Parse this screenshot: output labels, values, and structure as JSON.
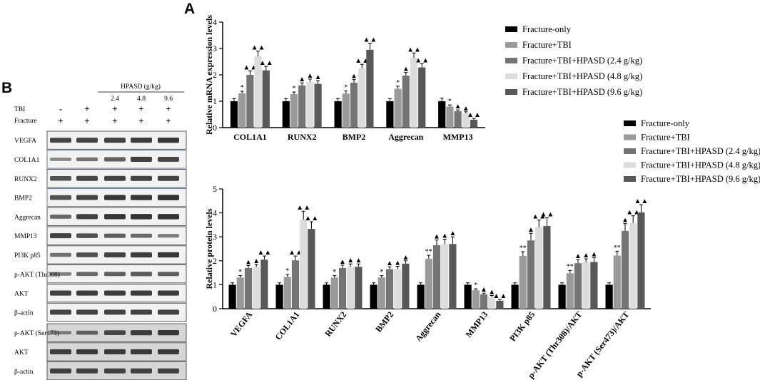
{
  "colors": {
    "series": [
      "#000000",
      "#9a9a9a",
      "#747474",
      "#dcdcdc",
      "#585858"
    ],
    "blot_band": "#1a1a1a"
  },
  "western_blot": {
    "panel_letter": "B",
    "header": "HPASD (g/kg)",
    "doses": [
      "2.4",
      "4.8",
      "9.6"
    ],
    "tbi_label": "TBI",
    "tbi_signs": [
      "-",
      "+",
      "+",
      "+",
      "+"
    ],
    "fracture_label": "Fracture",
    "fracture_signs": [
      "+",
      "+",
      "+",
      "+",
      "+"
    ],
    "rows": [
      "VEGFA",
      "COL1A1",
      "RUNX2",
      "BMP2",
      "Aggrecan",
      "MMP13",
      "PI3K p85",
      "p-AKT (Thr308)",
      "AKT",
      "β-actin",
      "p-AKT (Ser473)",
      "AKT",
      "β-actin"
    ],
    "band_intensity": [
      [
        0.78,
        0.8,
        0.82,
        0.85,
        0.88
      ],
      [
        0.35,
        0.48,
        0.62,
        0.82,
        0.78
      ],
      [
        0.72,
        0.78,
        0.8,
        0.8,
        0.8
      ],
      [
        0.72,
        0.8,
        0.88,
        0.88,
        0.92
      ],
      [
        0.55,
        0.82,
        0.88,
        0.9,
        0.9
      ],
      [
        0.8,
        0.7,
        0.62,
        0.55,
        0.42
      ],
      [
        0.5,
        0.72,
        0.8,
        0.85,
        0.88
      ],
      [
        0.4,
        0.55,
        0.62,
        0.65,
        0.62
      ],
      [
        0.82,
        0.84,
        0.84,
        0.84,
        0.84
      ],
      [
        0.8,
        0.8,
        0.8,
        0.8,
        0.8
      ],
      [
        0.35,
        0.55,
        0.75,
        0.82,
        0.85
      ],
      [
        0.82,
        0.84,
        0.84,
        0.84,
        0.84
      ],
      [
        0.78,
        0.78,
        0.78,
        0.78,
        0.78
      ]
    ]
  },
  "chart_data": [
    {
      "type": "bar",
      "panel_letter": "A",
      "title": "",
      "xlabel": "",
      "ylabel": "Relative mRNA expression levels",
      "ylim": [
        0,
        4
      ],
      "yticks": [
        "0",
        "1",
        "2",
        "3",
        "4"
      ],
      "categories": [
        "COL1A1",
        "RUNX2",
        "BMP2",
        "Aggrecan",
        "MMP13"
      ],
      "legend_position": "right",
      "series": [
        {
          "name": "Fracture-only",
          "values": [
            1.0,
            1.0,
            1.0,
            1.0,
            1.0
          ],
          "errors": [
            0.1,
            0.1,
            0.1,
            0.1,
            0.12
          ],
          "marks": [
            "",
            "",
            "",
            "",
            ""
          ]
        },
        {
          "name": "Fracture+TBI",
          "values": [
            1.3,
            1.27,
            1.29,
            1.47,
            0.8
          ],
          "errors": [
            0.08,
            0.08,
            0.1,
            0.1,
            0.06
          ],
          "marks": [
            "*",
            "*",
            "*",
            "*",
            "*"
          ]
        },
        {
          "name": "Fracture+TBI+HPASD (2.4 g/kg)",
          "values": [
            2.0,
            1.6,
            1.7,
            1.97,
            0.62
          ],
          "errors": [
            0.15,
            0.1,
            0.12,
            0.12,
            0.05
          ],
          "marks": [
            "▲▲",
            "▲",
            "▲",
            "▲",
            "▲"
          ]
        },
        {
          "name": "Fracture+TBI+HPASD (4.8 g/kg)",
          "values": [
            2.7,
            1.72,
            2.25,
            2.65,
            0.55
          ],
          "errors": [
            0.2,
            0.12,
            0.15,
            0.18,
            0.05
          ],
          "marks": [
            "▲▲",
            "▲",
            "▲▲",
            "▲▲",
            "▲"
          ]
        },
        {
          "name": "Fracture+TBI+HPASD (9.6 g/kg)",
          "values": [
            2.17,
            1.66,
            2.95,
            2.28,
            0.3
          ],
          "errors": [
            0.15,
            0.12,
            0.25,
            0.14,
            0.05
          ],
          "marks": [
            "▲▲",
            "▲",
            "▲▲",
            "▲▲",
            "▲▲"
          ]
        }
      ]
    },
    {
      "type": "bar",
      "title": "",
      "xlabel": "",
      "ylabel": "Relative protein levels",
      "ylim": [
        0,
        5
      ],
      "yticks": [
        "0",
        "1",
        "2",
        "3",
        "4",
        "5"
      ],
      "categories": [
        "VEGFA",
        "COL1A1",
        "RUNX2",
        "BMP2",
        "Aggrecan",
        "MMP13",
        "PI3K p85",
        "p-AKT (Thr308)/AKT",
        "p-AKT (Ser473)/AKT"
      ],
      "legend_position": "top-right",
      "series": [
        {
          "name": "Fracture-only",
          "values": [
            1.0,
            1.0,
            1.0,
            1.0,
            1.0,
            1.0,
            1.0,
            1.0,
            1.0
          ],
          "errors": [
            0.08,
            0.08,
            0.08,
            0.08,
            0.08,
            0.08,
            0.08,
            0.08,
            0.08
          ],
          "marks": [
            "",
            "",
            "",
            "",
            "",
            "",
            "",
            "",
            ""
          ]
        },
        {
          "name": "Fracture+TBI",
          "values": [
            1.3,
            1.33,
            1.3,
            1.3,
            2.08,
            0.77,
            2.2,
            1.48,
            2.22
          ],
          "errors": [
            0.08,
            0.1,
            0.08,
            0.08,
            0.15,
            0.06,
            0.18,
            0.12,
            0.18
          ],
          "marks": [
            "*",
            "*",
            "*",
            "*",
            "**",
            "*",
            "**",
            "**",
            "**"
          ]
        },
        {
          "name": "Fracture+TBI+HPASD (2.4 g/kg)",
          "values": [
            1.7,
            2.02,
            1.7,
            1.65,
            2.65,
            0.6,
            2.85,
            1.9,
            3.25
          ],
          "errors": [
            0.1,
            0.18,
            0.12,
            0.1,
            0.22,
            0.05,
            0.3,
            0.15,
            0.3
          ],
          "marks": [
            "▲",
            "▲▲",
            "▲",
            "▲",
            "▲",
            "▲",
            "▲",
            "▲",
            "▲"
          ]
        },
        {
          "name": "Fracture+TBI+HPASD (4.8 g/kg)",
          "values": [
            1.75,
            3.72,
            1.75,
            1.65,
            2.7,
            0.5,
            3.4,
            1.93,
            3.58
          ],
          "errors": [
            0.1,
            0.35,
            0.12,
            0.12,
            0.2,
            0.05,
            0.3,
            0.15,
            0.3
          ],
          "marks": [
            "▲",
            "▲▲",
            "▲",
            "▲",
            "▲",
            "▲",
            "▲▲",
            "▲",
            "▲▲"
          ]
        },
        {
          "name": "Fracture+TBI+HPASD (9.6 g/kg)",
          "values": [
            2.05,
            3.33,
            1.75,
            1.88,
            2.7,
            0.33,
            3.45,
            1.95,
            4.02
          ],
          "errors": [
            0.15,
            0.3,
            0.12,
            0.12,
            0.3,
            0.05,
            0.35,
            0.18,
            0.32
          ],
          "marks": [
            "▲▲",
            "▲▲",
            "▲",
            "▲",
            "▲",
            "▲▲",
            "▲▲",
            "▲",
            "▲▲"
          ]
        }
      ]
    }
  ]
}
